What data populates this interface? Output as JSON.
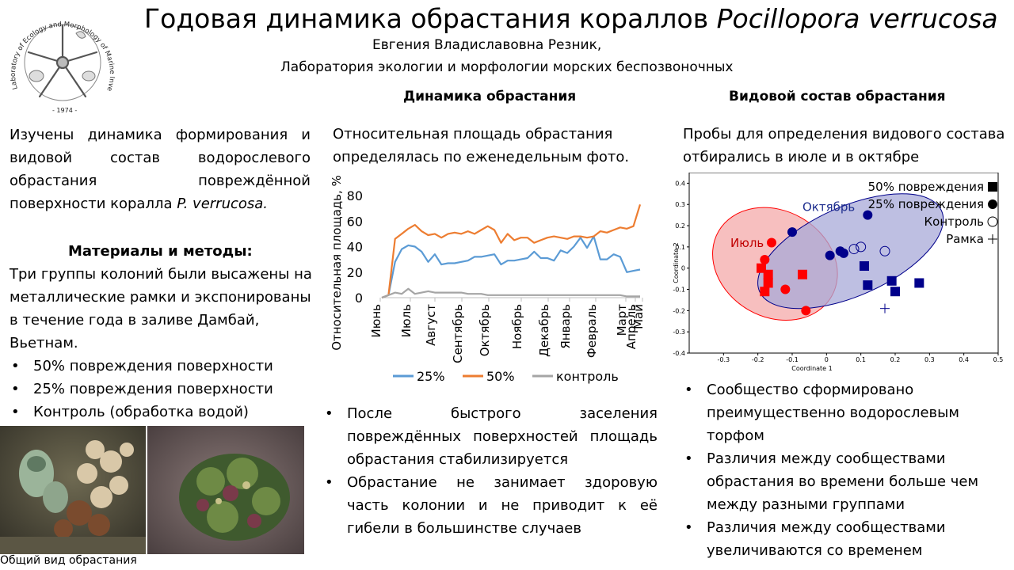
{
  "header": {
    "title_main": "Годовая динамика обрастания кораллов ",
    "title_species": "Pocillopora verrucosa",
    "author": "Евгения Владиславовна Резник,",
    "lab": "Лаборатория экологии и морфологии морских беспозвоночных",
    "logo_text": "Laboratory of Ecology and Morphology of Marine Invertebrates",
    "logo_year": "- 1974 -"
  },
  "left": {
    "intro_prefix": "Изучены динамика формирования и видовой состав водорослевого обрастания повреждённой поверхности коралла ",
    "intro_species": "P. verrucosa.",
    "methods_heading": "Материалы и методы:",
    "methods_text": "Три группы колоний были высажены на металлические рамки и экспонированы в течение года в заливе Дамбай, Вьетнам.",
    "groups": [
      "50% повреждения поверхности",
      "25% повреждения поверхности",
      "Контроль (обработка водой)"
    ],
    "photo_caption": "Общий вид обрастания"
  },
  "middle": {
    "heading": "Динамика обрастания",
    "text": "Относительная площадь обрастания определялась по еженедельным фото.",
    "bullets": [
      "После быстрого заселения повреждённых поверхностей площадь обрастания стабилизируется",
      "Обрастание не занимает здоровую часть колонии и не приводит к её гибели в большинстве случаев"
    ]
  },
  "right": {
    "heading": "Видовой состав обрастания",
    "text": "Пробы для определения видового состава отбирались в июле и в октябре",
    "bullets": [
      "Сообщество сформировано преимущественно водорослевым торфом",
      "Различия между сообществами обрастания во времени больше чем между разными группами",
      "Различия между сообществами увеличиваются со временем"
    ]
  },
  "chart_data": [
    {
      "type": "line",
      "title": "",
      "ylabel": "Относительная площадь, %",
      "xlabel": "",
      "ylim": [
        0,
        80
      ],
      "yticks": [
        0,
        20,
        40,
        60,
        80
      ],
      "x_tick_labels": [
        "Июнь",
        "Июль",
        "Август",
        "Сентябрь",
        "Октябрь",
        "Ноябрь",
        "Декабрь",
        "Январь",
        "Февраль",
        "Март",
        "Апрель",
        "Май"
      ],
      "legend_position": "bottom",
      "series": [
        {
          "name": "25%",
          "color": "#5b9bd5",
          "values": [
            0,
            2,
            28,
            38,
            41,
            40,
            36,
            28,
            34,
            26,
            27,
            27,
            28,
            29,
            32,
            32,
            33,
            34,
            26,
            29,
            29,
            30,
            31,
            36,
            31,
            31,
            29,
            37,
            35,
            40,
            47,
            39,
            48,
            30,
            30,
            34,
            32,
            20,
            21,
            22
          ]
        },
        {
          "name": "50%",
          "color": "#ed7d31",
          "values": [
            0,
            2,
            46,
            50,
            54,
            57,
            52,
            49,
            50,
            47,
            50,
            51,
            50,
            52,
            50,
            53,
            56,
            53,
            43,
            50,
            45,
            47,
            47,
            43,
            45,
            47,
            48,
            47,
            46,
            48,
            48,
            47,
            48,
            52,
            51,
            53,
            55,
            54,
            56,
            73
          ]
        },
        {
          "name": "контроль",
          "color": "#a5a5a5",
          "values": [
            0,
            2,
            4,
            3,
            7,
            3,
            4,
            5,
            4,
            4,
            4,
            4,
            4,
            3,
            3,
            3,
            2,
            2,
            2,
            2,
            2,
            2,
            2,
            2,
            2,
            2,
            2,
            2,
            2,
            2,
            2,
            2,
            2,
            2,
            2,
            2,
            2,
            1,
            1,
            1
          ]
        }
      ]
    },
    {
      "type": "scatter",
      "title": "",
      "xlabel": "Coordinate 1",
      "ylabel": "Coordinate 2",
      "xlim": [
        -0.4,
        0.5
      ],
      "ylim": [
        -0.4,
        0.45
      ],
      "x_tick_labels": [
        "-0.3",
        "-0.2",
        "-0.1",
        "0",
        "0.1",
        "0.2",
        "0.3",
        "0.4",
        "0.5"
      ],
      "y_tick_labels": [
        "0.4",
        "0.3",
        "0.2",
        "0.1",
        "0",
        "-0.1",
        "-0.2",
        "-0.3",
        "-0.4"
      ],
      "legend_position": "top-right",
      "legend": [
        {
          "label": "50% повреждения",
          "marker": "square-filled"
        },
        {
          "label": "25% повреждения",
          "marker": "circle-filled"
        },
        {
          "label": "Контроль",
          "marker": "circle-open"
        },
        {
          "label": "Рамка",
          "marker": "plus"
        }
      ],
      "groups": [
        {
          "name": "Июль",
          "color": "#ff0000",
          "fill": "#f4a9a9",
          "ellipse": {
            "cx": -0.15,
            "cy": 0.02,
            "rx": 0.19,
            "ry": 0.25,
            "angle": 30
          },
          "points": [
            {
              "x": -0.19,
              "y": 0.0,
              "m": "square-filled"
            },
            {
              "x": -0.17,
              "y": -0.03,
              "m": "square-filled"
            },
            {
              "x": -0.17,
              "y": -0.07,
              "m": "square-filled"
            },
            {
              "x": -0.18,
              "y": -0.11,
              "m": "square-filled"
            },
            {
              "x": -0.07,
              "y": -0.03,
              "m": "square-filled"
            },
            {
              "x": -0.16,
              "y": 0.12,
              "m": "circle-filled"
            },
            {
              "x": -0.18,
              "y": 0.04,
              "m": "circle-filled"
            },
            {
              "x": -0.12,
              "y": -0.1,
              "m": "circle-filled"
            },
            {
              "x": -0.06,
              "y": -0.2,
              "m": "circle-filled"
            }
          ]
        },
        {
          "name": "Октябрь",
          "color": "#00008b",
          "fill": "#a8aad8",
          "ellipse": {
            "cx": 0.07,
            "cy": 0.08,
            "rx": 0.29,
            "ry": 0.21,
            "angle": -24
          },
          "points": [
            {
              "x": -0.1,
              "y": 0.17,
              "m": "circle-filled"
            },
            {
              "x": 0.12,
              "y": 0.25,
              "m": "circle-filled"
            },
            {
              "x": 0.01,
              "y": 0.06,
              "m": "circle-filled"
            },
            {
              "x": 0.04,
              "y": 0.08,
              "m": "circle-filled"
            },
            {
              "x": 0.05,
              "y": 0.07,
              "m": "circle-filled"
            },
            {
              "x": 0.11,
              "y": 0.01,
              "m": "square-filled"
            },
            {
              "x": 0.12,
              "y": -0.08,
              "m": "square-filled"
            },
            {
              "x": 0.19,
              "y": -0.06,
              "m": "square-filled"
            },
            {
              "x": 0.2,
              "y": -0.11,
              "m": "square-filled"
            },
            {
              "x": 0.27,
              "y": -0.07,
              "m": "square-filled"
            },
            {
              "x": 0.08,
              "y": 0.09,
              "m": "circle-open"
            },
            {
              "x": 0.1,
              "y": 0.1,
              "m": "circle-open"
            },
            {
              "x": 0.17,
              "y": 0.08,
              "m": "circle-open"
            },
            {
              "x": 0.17,
              "y": -0.19,
              "m": "plus"
            }
          ]
        }
      ]
    }
  ]
}
